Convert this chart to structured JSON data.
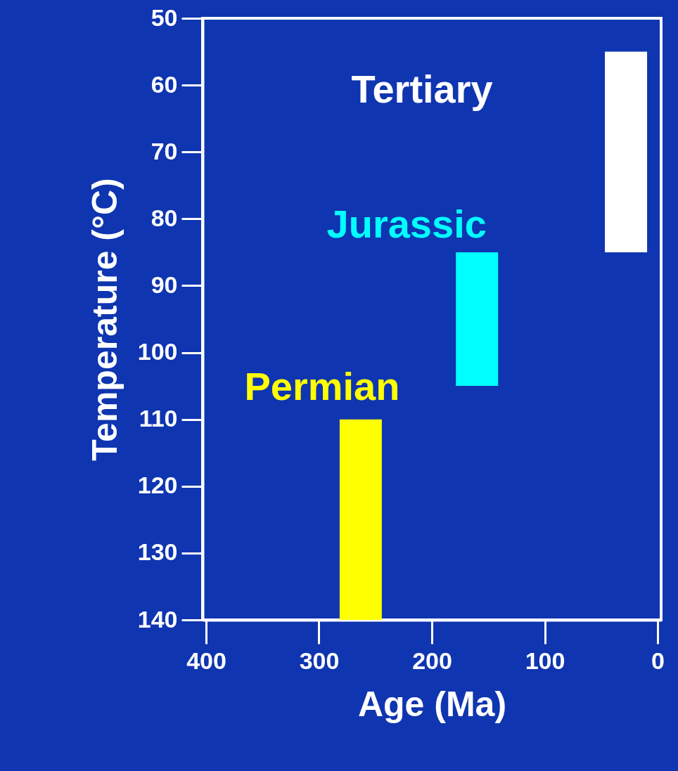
{
  "chart_data": {
    "type": "bar",
    "xlabel": "Age (Ma)",
    "ylabel": "Temperature (°C)",
    "x": [
      263,
      160,
      28
    ],
    "base": [
      110,
      85,
      55
    ],
    "values": [
      30,
      20,
      30
    ],
    "colors": [
      "#ffff00",
      "#00ffff",
      "#ffffff"
    ],
    "annotations": [
      "Permian",
      "Jurassic",
      "Tertiary"
    ],
    "xlim": [
      400,
      0
    ],
    "xticks": [
      400,
      300,
      200,
      100,
      0
    ],
    "ylim": [
      140,
      50
    ],
    "yticks": [
      50,
      60,
      70,
      80,
      90,
      100,
      110,
      120,
      130,
      140
    ],
    "grid": false
  }
}
